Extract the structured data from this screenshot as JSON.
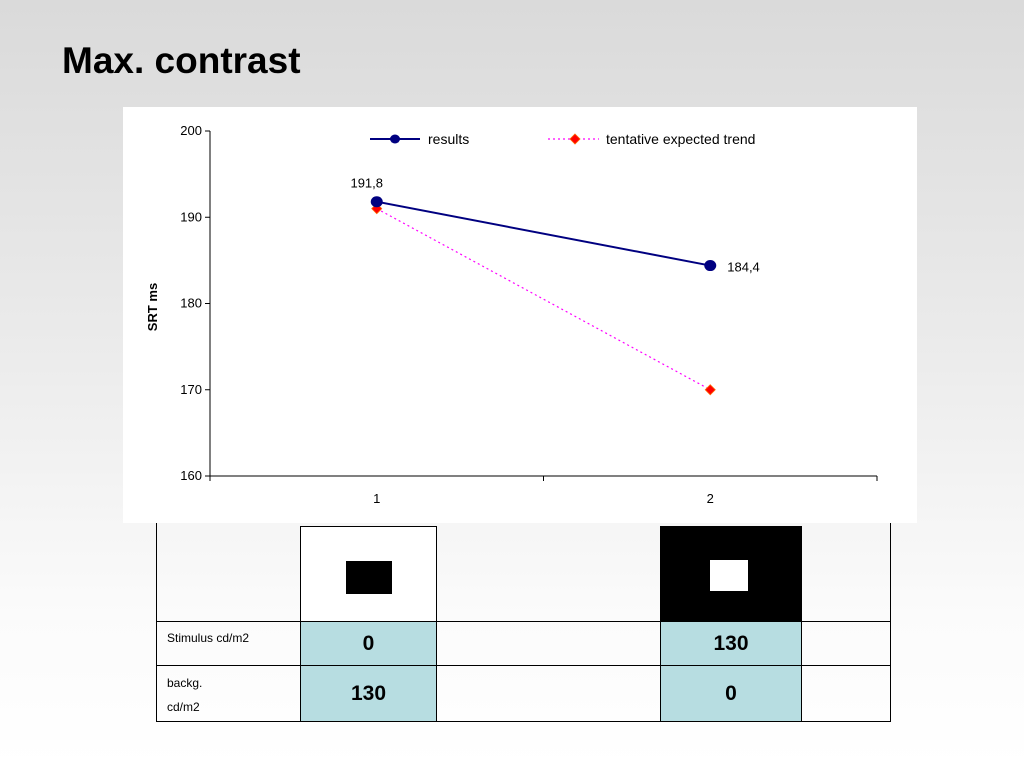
{
  "slide": {
    "title": "Max. contrast"
  },
  "chart_data": {
    "type": "line",
    "title": "",
    "xlabel": "",
    "ylabel": "SRT ms",
    "x": [
      "1",
      "2"
    ],
    "ylim": [
      160,
      200
    ],
    "yticks": [
      160,
      170,
      180,
      190,
      200
    ],
    "legend_position": "top",
    "grid": false,
    "series": [
      {
        "name": "results",
        "values": [
          191.8,
          184.4
        ],
        "data_labels": [
          "191,8",
          "184,4"
        ],
        "color": "#000080",
        "style": "solid",
        "marker": "circle"
      },
      {
        "name": "tentative expected trend",
        "values": [
          191,
          170
        ],
        "color": "#ff00ff",
        "marker_color": "#ff0000",
        "style": "dotted",
        "marker": "diamond"
      }
    ]
  },
  "table": {
    "stimulus_label": "Stimulus cd/m2",
    "background_label_line1": "backg.",
    "background_label_line2": "cd/m2",
    "conditions": [
      {
        "stimulus": "0",
        "background": "130",
        "swatch_bg": "#ffffff",
        "swatch_fg": "#000000"
      },
      {
        "stimulus": "130",
        "background": "0",
        "swatch_bg": "#000000",
        "swatch_fg": "#ffffff"
      }
    ]
  }
}
